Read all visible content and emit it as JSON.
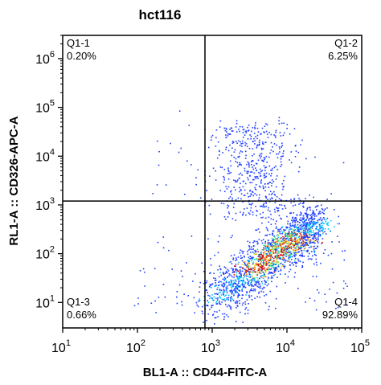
{
  "chart_data": {
    "type": "scatter",
    "title": "hct116",
    "xlabel": "BL1-A :: CD44-FITC-A",
    "ylabel": "RL1-A :: CD326-APC-A",
    "xscale": "log",
    "yscale": "log",
    "xlim": [
      10,
      100000
    ],
    "ylim": [
      3,
      3000000
    ],
    "x_ticks": [
      {
        "base": "10",
        "exp": "1"
      },
      {
        "base": "10",
        "exp": "2"
      },
      {
        "base": "10",
        "exp": "3"
      },
      {
        "base": "10",
        "exp": "4"
      },
      {
        "base": "10",
        "exp": "5"
      }
    ],
    "y_ticks": [
      {
        "base": "10",
        "exp": "1"
      },
      {
        "base": "10",
        "exp": "2"
      },
      {
        "base": "10",
        "exp": "3"
      },
      {
        "base": "10",
        "exp": "4"
      },
      {
        "base": "10",
        "exp": "5"
      },
      {
        "base": "10",
        "exp": "6"
      }
    ],
    "gate": {
      "x": 800,
      "y": 1200
    },
    "quadrants": [
      {
        "id": "Q1-1",
        "label": "Q1-1",
        "percent": "0.20%",
        "position": "top-left"
      },
      {
        "id": "Q1-2",
        "label": "Q1-2",
        "percent": "6.25%",
        "position": "top-right"
      },
      {
        "id": "Q1-3",
        "label": "Q1-3",
        "percent": "0.66%",
        "position": "bottom-left"
      },
      {
        "id": "Q1-4",
        "label": "Q1-4",
        "percent": "92.89%",
        "position": "bottom-right"
      }
    ],
    "density_colormap": [
      "#1f3fff",
      "#00c8ff",
      "#2ee07a",
      "#f0e020",
      "#ff7a00",
      "#d01010"
    ],
    "point_color": "#1f3fff",
    "grid": false
  }
}
